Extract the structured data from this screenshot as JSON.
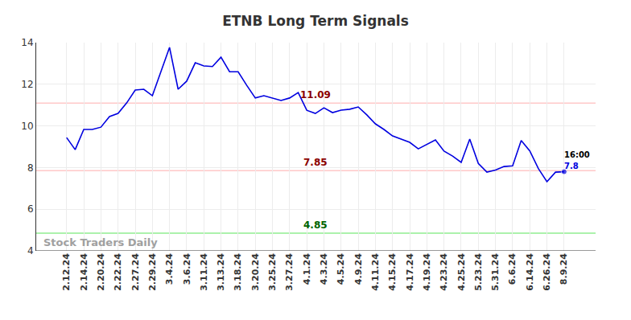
{
  "chart_data": {
    "type": "line",
    "title": "ETNB Long Term Signals",
    "categories": [
      "2.12.24",
      null,
      "2.14.24",
      null,
      "2.20.24",
      null,
      "2.22.24",
      null,
      "2.27.24",
      null,
      "2.29.24",
      null,
      "3.4.24",
      null,
      "3.6.24",
      null,
      "3.11.24",
      null,
      "3.13.24",
      null,
      "3.18.24",
      null,
      "3.20.24",
      null,
      "3.25.24",
      null,
      "3.27.24",
      null,
      "4.1.24",
      null,
      "4.3.24",
      null,
      "4.5.24",
      null,
      "4.9.24",
      null,
      "4.11.24",
      null,
      "4.15.24",
      null,
      "4.17.24",
      null,
      "4.19.24",
      null,
      "4.23.24",
      null,
      "4.25.24",
      null,
      "5.23.24",
      null,
      "5.31.24",
      null,
      "6.6.24",
      null,
      "6.14.24",
      null,
      "6.26.24",
      null,
      "8.9.24"
    ],
    "values": [
      9.44,
      8.86,
      9.83,
      9.83,
      9.94,
      10.45,
      10.6,
      11.1,
      11.72,
      11.76,
      11.45,
      12.6,
      13.77,
      11.76,
      12.15,
      13.03,
      12.88,
      12.85,
      13.3,
      12.6,
      12.6,
      11.95,
      11.34,
      11.45,
      11.34,
      11.22,
      11.34,
      11.6,
      10.75,
      10.6,
      10.87,
      10.64,
      10.76,
      10.8,
      10.91,
      10.53,
      10.1,
      9.83,
      9.52,
      9.37,
      9.21,
      8.9,
      9.1,
      9.33,
      8.79,
      8.55,
      8.25,
      9.37,
      8.2,
      7.78,
      7.88,
      8.05,
      8.08,
      9.3,
      8.8,
      7.95,
      7.32,
      7.78,
      7.8
    ],
    "color": "#0000e0",
    "ylim": [
      4,
      14
    ],
    "yticks": [
      4,
      6,
      8,
      10,
      12,
      14
    ],
    "grid": true,
    "reference_lines": [
      {
        "value": 11.09,
        "color": "#ffc8c8",
        "label_color": "#8b0000"
      },
      {
        "value": 7.85,
        "color": "#ffc8c8",
        "label_color": "#8b0000"
      },
      {
        "value": 4.85,
        "color": "#90ee90",
        "label_color": "#006400"
      }
    ],
    "last_point_time": "16:00",
    "watermark": "Stock Traders Daily"
  }
}
